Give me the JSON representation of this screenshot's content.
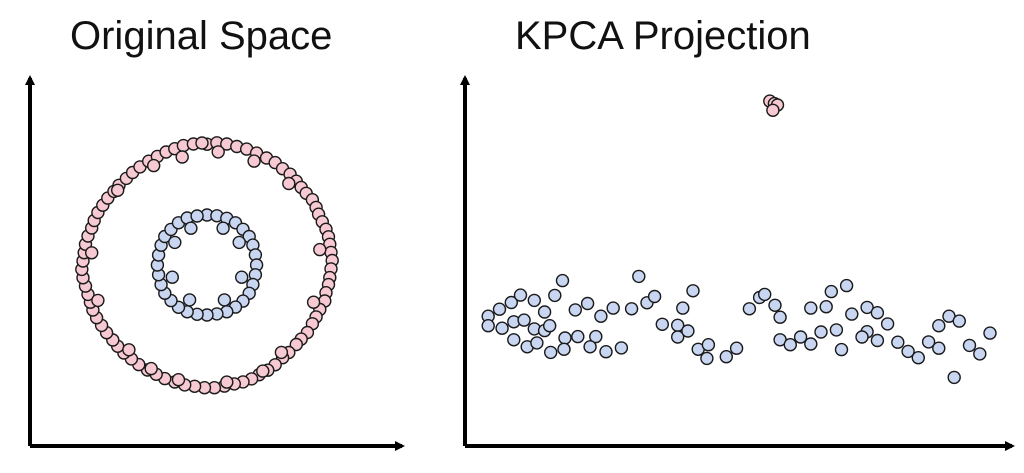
{
  "panels": {
    "left": {
      "title": "Original Space"
    },
    "right": {
      "title": "KPCA Projection"
    }
  },
  "colors": {
    "outer_ring": "#f7c9d2",
    "inner_ring": "#c9d6f2",
    "point_stroke": "#1a1a1a",
    "axis": "#000000"
  },
  "chart_data": [
    {
      "type": "scatter",
      "title": "Original Space",
      "xlabel": "",
      "ylabel": "",
      "grid": false,
      "series": [
        {
          "color": "#f7c9d2",
          "points": [
            [
              0.0,
              0.99
            ],
            [
              0.08,
              1.002
            ],
            [
              0.16,
              0.992
            ],
            [
              0.24,
              0.971
            ],
            [
              0.32,
              0.95
            ],
            [
              0.4,
              0.917
            ],
            [
              0.48,
              0.877
            ],
            [
              0.55,
              0.839
            ],
            [
              0.61,
              0.789
            ],
            [
              0.67,
              0.744
            ],
            [
              0.72,
              0.687
            ],
            [
              0.76,
              0.636
            ],
            [
              0.8,
              0.588
            ],
            [
              0.85,
              0.535
            ],
            [
              0.88,
              0.472
            ],
            [
              0.9,
              0.416
            ],
            [
              0.93,
              0.354
            ],
            [
              0.96,
              0.293
            ],
            [
              0.98,
              0.231
            ],
            [
              0.99,
              0.17
            ],
            [
              1.0,
              0.103
            ],
            [
              1.01,
              0.037
            ],
            [
              1.0,
              -0.032
            ],
            [
              0.99,
              -0.103
            ],
            [
              0.98,
              -0.161
            ],
            [
              0.96,
              -0.227
            ],
            [
              0.95,
              -0.295
            ],
            [
              0.91,
              -0.365
            ],
            [
              0.88,
              -0.425
            ],
            [
              0.85,
              -0.482
            ],
            [
              0.81,
              -0.553
            ],
            [
              0.76,
              -0.607
            ],
            [
              0.72,
              -0.652
            ],
            [
              0.66,
              -0.717
            ],
            [
              0.61,
              -0.76
            ],
            [
              0.55,
              -0.818
            ],
            [
              0.49,
              -0.862
            ],
            [
              0.42,
              -0.899
            ],
            [
              0.36,
              -0.934
            ],
            [
              0.29,
              -0.958
            ],
            [
              0.22,
              -0.975
            ],
            [
              0.14,
              -0.993
            ],
            [
              0.06,
              -1.006
            ],
            [
              -0.02,
              -1.006
            ],
            [
              -0.1,
              -0.994
            ],
            [
              -0.18,
              -0.983
            ],
            [
              -0.26,
              -0.959
            ],
            [
              -0.34,
              -0.931
            ],
            [
              -0.41,
              -0.896
            ],
            [
              -0.48,
              -0.861
            ],
            [
              -0.55,
              -0.816
            ],
            [
              -0.61,
              -0.77
            ],
            [
              -0.67,
              -0.721
            ],
            [
              -0.72,
              -0.666
            ],
            [
              -0.76,
              -0.615
            ],
            [
              -0.81,
              -0.555
            ],
            [
              -0.85,
              -0.495
            ],
            [
              -0.89,
              -0.432
            ],
            [
              -0.92,
              -0.369
            ],
            [
              -0.94,
              -0.305
            ],
            [
              -0.96,
              -0.241
            ],
            [
              -0.98,
              -0.173
            ],
            [
              -1.0,
              -0.105
            ],
            [
              -1.01,
              -0.036
            ],
            [
              -1.0,
              0.033
            ],
            [
              -0.99,
              0.101
            ],
            [
              -0.98,
              0.17
            ],
            [
              -0.96,
              0.238
            ],
            [
              -0.93,
              0.303
            ],
            [
              -0.91,
              0.365
            ],
            [
              -0.88,
              0.43
            ],
            [
              -0.84,
              0.49
            ],
            [
              -0.8,
              0.548
            ],
            [
              -0.75,
              0.603
            ],
            [
              -0.71,
              0.653
            ],
            [
              -0.65,
              0.71
            ],
            [
              -0.6,
              0.758
            ],
            [
              -0.54,
              0.804
            ],
            [
              -0.47,
              0.851
            ],
            [
              -0.4,
              0.89
            ],
            [
              -0.33,
              0.926
            ],
            [
              -0.26,
              0.953
            ],
            [
              -0.19,
              0.979
            ],
            [
              -0.11,
              0.992
            ],
            [
              -0.04,
              1.0
            ],
            [
              0.09,
              0.927
            ],
            [
              -0.2,
              0.885
            ],
            [
              0.38,
              0.852
            ],
            [
              -0.43,
              0.815
            ],
            [
              0.66,
              0.668
            ],
            [
              -0.72,
              0.612
            ],
            [
              0.91,
              0.126
            ],
            [
              -0.93,
              0.1
            ],
            [
              0.86,
              -0.305
            ],
            [
              -0.88,
              -0.29
            ],
            [
              0.6,
              -0.716
            ],
            [
              -0.63,
              -0.695
            ],
            [
              0.16,
              -0.96
            ],
            [
              -0.23,
              -0.94
            ],
            [
              0.45,
              -0.87
            ],
            [
              -0.45,
              -0.849
            ]
          ]
        },
        {
          "color": "#c9d6f2",
          "points": [
            [
              0.0,
              0.41
            ],
            [
              0.08,
              0.403
            ],
            [
              0.16,
              0.383
            ],
            [
              0.23,
              0.346
            ],
            [
              0.29,
              0.293
            ],
            [
              0.34,
              0.234
            ],
            [
              0.37,
              0.163
            ],
            [
              0.39,
              0.083
            ],
            [
              0.4,
              0.0
            ],
            [
              0.39,
              -0.08
            ],
            [
              0.37,
              -0.16
            ],
            [
              0.34,
              -0.232
            ],
            [
              0.29,
              -0.296
            ],
            [
              0.23,
              -0.345
            ],
            [
              0.16,
              -0.384
            ],
            [
              0.08,
              -0.401
            ],
            [
              0.0,
              -0.41
            ],
            [
              -0.08,
              -0.404
            ],
            [
              -0.16,
              -0.384
            ],
            [
              -0.23,
              -0.347
            ],
            [
              -0.29,
              -0.292
            ],
            [
              -0.34,
              -0.231
            ],
            [
              -0.37,
              -0.161
            ],
            [
              -0.39,
              -0.08
            ],
            [
              -0.4,
              0.0
            ],
            [
              -0.39,
              0.082
            ],
            [
              -0.37,
              0.162
            ],
            [
              -0.34,
              0.234
            ],
            [
              -0.29,
              0.292
            ],
            [
              -0.23,
              0.346
            ],
            [
              -0.16,
              0.385
            ],
            [
              -0.08,
              0.402
            ],
            [
              0.13,
              0.302
            ],
            [
              0.26,
              0.185
            ],
            [
              0.28,
              -0.1
            ],
            [
              0.14,
              -0.286
            ],
            [
              -0.14,
              -0.286
            ],
            [
              -0.28,
              -0.1
            ],
            [
              -0.26,
              0.185
            ],
            [
              -0.13,
              0.302
            ]
          ]
        }
      ]
    },
    {
      "type": "scatter",
      "title": "KPCA Projection",
      "xlabel": "",
      "ylabel": "",
      "grid": false,
      "series": [
        {
          "color": "#f7c9d2",
          "points": [
            [
              0.57,
              0.94
            ],
            [
              0.579,
              0.933
            ],
            [
              0.585,
              0.929
            ],
            [
              0.576,
              0.914
            ]
          ]
        },
        {
          "color": "#c9d6f2",
          "points": [
            [
              0.02,
              0.329
            ],
            [
              0.042,
              0.349
            ],
            [
              0.065,
              0.368
            ],
            [
              0.083,
              0.389
            ],
            [
              0.11,
              0.374
            ],
            [
              0.13,
              0.341
            ],
            [
              0.15,
              0.388
            ],
            [
              0.165,
              0.43
            ],
            [
              0.19,
              0.347
            ],
            [
              0.214,
              0.365
            ],
            [
              0.02,
              0.302
            ],
            [
              0.047,
              0.295
            ],
            [
              0.07,
              0.313
            ],
            [
              0.09,
              0.318
            ],
            [
              0.11,
              0.293
            ],
            [
              0.13,
              0.288
            ],
            [
              0.14,
              0.302
            ],
            [
              0.17,
              0.267
            ],
            [
              0.195,
              0.271
            ],
            [
              0.23,
              0.271
            ],
            [
              0.07,
              0.262
            ],
            [
              0.096,
              0.242
            ],
            [
              0.115,
              0.253
            ],
            [
              0.142,
              0.226
            ],
            [
              0.168,
              0.235
            ],
            [
              0.219,
              0.242
            ],
            [
              0.25,
              0.228
            ],
            [
              0.28,
              0.239
            ],
            [
              0.3,
              0.35
            ],
            [
              0.33,
              0.367
            ],
            [
              0.24,
              0.329
            ],
            [
              0.264,
              0.352
            ],
            [
              0.314,
              0.442
            ],
            [
              0.345,
              0.385
            ],
            [
              0.4,
              0.352
            ],
            [
              0.42,
              0.401
            ],
            [
              0.39,
              0.303
            ],
            [
              0.36,
              0.306
            ],
            [
              0.39,
              0.27
            ],
            [
              0.41,
              0.287
            ],
            [
              0.43,
              0.235
            ],
            [
              0.447,
              0.209
            ],
            [
              0.45,
              0.248
            ],
            [
              0.485,
              0.214
            ],
            [
              0.505,
              0.238
            ],
            [
              0.53,
              0.35
            ],
            [
              0.55,
              0.382
            ],
            [
              0.56,
              0.391
            ],
            [
              0.58,
              0.36
            ],
            [
              0.59,
              0.326
            ],
            [
              0.59,
              0.262
            ],
            [
              0.61,
              0.248
            ],
            [
              0.63,
              0.27
            ],
            [
              0.65,
              0.352
            ],
            [
              0.68,
              0.356
            ],
            [
              0.69,
              0.399
            ],
            [
              0.72,
              0.416
            ],
            [
              0.73,
              0.335
            ],
            [
              0.76,
              0.354
            ],
            [
              0.78,
              0.339
            ],
            [
              0.76,
              0.285
            ],
            [
              0.78,
              0.26
            ],
            [
              0.8,
              0.307
            ],
            [
              0.82,
              0.255
            ],
            [
              0.84,
              0.229
            ],
            [
              0.86,
              0.211
            ],
            [
              0.88,
              0.256
            ],
            [
              0.9,
              0.302
            ],
            [
              0.92,
              0.329
            ],
            [
              0.94,
              0.315
            ],
            [
              0.96,
              0.246
            ],
            [
              0.98,
              0.222
            ],
            [
              1.0,
              0.281
            ],
            [
              0.93,
              0.155
            ],
            [
              0.9,
              0.238
            ],
            [
              0.71,
              0.234
            ],
            [
              0.75,
              0.27
            ],
            [
              0.7,
              0.29
            ],
            [
              0.67,
              0.284
            ],
            [
              0.65,
              0.25
            ]
          ]
        }
      ]
    }
  ]
}
